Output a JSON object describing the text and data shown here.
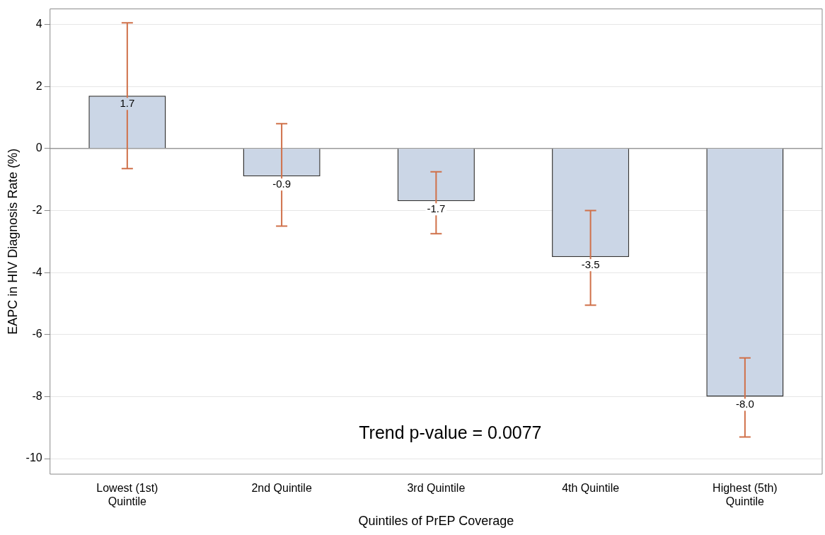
{
  "chart_data": {
    "type": "bar",
    "xlabel": "Quintiles of PrEP Coverage",
    "ylabel": "EAPC in HIV Diagnosis Rate (%)",
    "categories": [
      "Lowest (1st) Quintile",
      "2nd Quintile",
      "3rd Quintile",
      "4th Quintile",
      "Highest (5th) Quintile"
    ],
    "values": [
      1.7,
      -0.9,
      -1.7,
      -3.5,
      -8.0
    ],
    "errors": [
      [
        -0.65,
        4.05
      ],
      [
        -2.5,
        0.8
      ],
      [
        -2.75,
        -0.75
      ],
      [
        -5.05,
        -2.0
      ],
      [
        -9.3,
        -6.75
      ]
    ],
    "color": "#cbd6e6",
    "value_labels": [
      "1.7",
      "-0.9",
      "-1.7",
      "-3.5",
      "-8.0"
    ],
    "ylim": [
      -10.5,
      4.5
    ],
    "yticks": [
      -10,
      -8,
      -6,
      -4,
      -2,
      0,
      2,
      4
    ],
    "grid": "y",
    "ref_lines": [
      {
        "axis": "y",
        "value": 0,
        "color": "#9a9a9a"
      }
    ],
    "annotations": [
      "Trend p-value = 0.0077"
    ],
    "legend": false
  }
}
